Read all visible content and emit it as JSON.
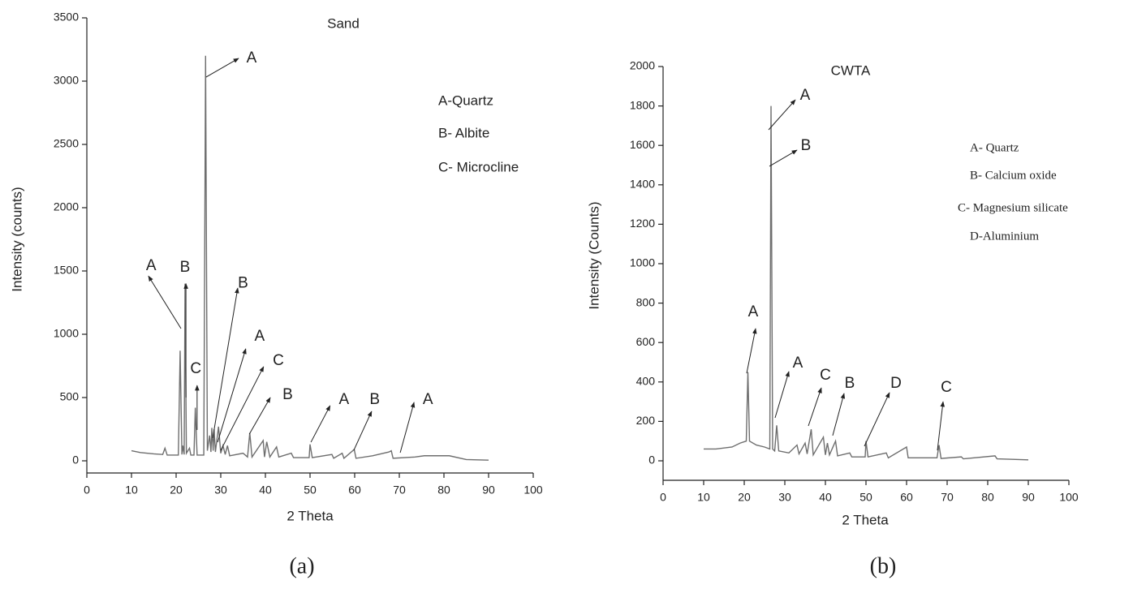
{
  "chart_data": [
    {
      "type": "line",
      "title": "Sand",
      "x_label": "2 Theta",
      "y_label": "Intensity (counts)",
      "caption": "(a)",
      "legend_notes": [
        "A-Quartz",
        "B- Albite",
        "C- Microcline"
      ],
      "xlim": [
        0,
        100
      ],
      "xticks": [
        0,
        10,
        20,
        30,
        40,
        50,
        60,
        70,
        80,
        90,
        100
      ],
      "ylim": [
        -100,
        3500
      ],
      "yticks": [
        0,
        500,
        1000,
        1500,
        2000,
        2500,
        3000,
        3500
      ],
      "x": [
        10,
        12,
        15,
        17,
        17.5,
        18,
        20.5,
        20.9,
        21.3,
        21.5,
        21.8,
        22,
        22.3,
        23,
        23.3,
        24,
        24.3,
        24.7,
        26.2,
        26.6,
        27,
        27.5,
        27.8,
        28,
        28.3,
        28.5,
        28.8,
        29.5,
        30,
        30.5,
        31,
        31.5,
        32,
        35,
        36,
        36.5,
        37,
        39.5,
        39.8,
        40.3,
        41,
        42.5,
        43,
        45.8,
        46.3,
        49.8,
        50,
        50.5,
        54.9,
        55.3,
        57.2,
        57.6,
        59.9,
        60.3,
        64,
        67.7,
        68.2,
        68.6,
        73.5,
        75.6,
        79.9,
        81.2,
        85,
        90
      ],
      "series": [
        {
          "color": "#6e6e6e",
          "values": [
            80,
            65,
            55,
            50,
            100,
            45,
            45,
            870,
            50,
            120,
            50,
            1400,
            60,
            100,
            45,
            45,
            420,
            45,
            45,
            3200,
            80,
            200,
            70,
            260,
            80,
            250,
            70,
            270,
            60,
            120,
            50,
            120,
            40,
            60,
            30,
            220,
            30,
            160,
            30,
            150,
            30,
            110,
            30,
            60,
            25,
            25,
            130,
            25,
            50,
            20,
            60,
            20,
            90,
            20,
            40,
            70,
            80,
            20,
            30,
            40,
            40,
            40,
            10,
            5
          ]
        }
      ],
      "annotations": [
        {
          "text": "A",
          "x": 14.4,
          "y": 1538,
          "arrow": [
            21.1,
            1045,
            13.8,
            1460
          ]
        },
        {
          "text": "B",
          "x": 22.0,
          "y": 1525,
          "arrow": [
            22.2,
            500,
            22.2,
            1400
          ]
        },
        {
          "text": "C",
          "x": 24.4,
          "y": 725,
          "arrow": [
            24.7,
            244,
            24.7,
            596
          ]
        },
        {
          "text": "A",
          "x": 36.9,
          "y": 3180,
          "arrow": [
            26.7,
            3032,
            34,
            3180
          ]
        },
        {
          "text": "B",
          "x": 35,
          "y": 1400,
          "arrow": [
            28.2,
            180,
            33.8,
            1365
          ]
        },
        {
          "text": "A",
          "x": 38.7,
          "y": 980,
          "arrow": [
            29.3,
            147,
            35.6,
            885
          ]
        },
        {
          "text": "C",
          "x": 42.9,
          "y": 790,
          "arrow": [
            30,
            83,
            39.6,
            744
          ]
        },
        {
          "text": "B",
          "x": 45,
          "y": 520,
          "arrow": [
            36.4,
            211,
            41.1,
            500
          ]
        },
        {
          "text": "A",
          "x": 57.6,
          "y": 480,
          "arrow": [
            50.2,
            147,
            54.5,
            436
          ]
        },
        {
          "text": "B",
          "x": 64.5,
          "y": 480,
          "arrow": [
            59.8,
            83,
            63.8,
            391
          ]
        },
        {
          "text": "A",
          "x": 76.4,
          "y": 480,
          "arrow": [
            70.2,
            64,
            73.3,
            462
          ]
        }
      ]
    },
    {
      "type": "line",
      "title": "CWTA",
      "x_label": "2 Theta",
      "y_label": "Intensity (Counts)",
      "caption": "(b)",
      "legend_notes": [
        "A- Quartz",
        "B- Calcium oxide",
        "C- Magnesium silicate",
        "D-Aluminium"
      ],
      "xlim": [
        0,
        100
      ],
      "xticks": [
        0,
        10,
        20,
        30,
        40,
        50,
        60,
        70,
        80,
        90,
        100
      ],
      "ylim": [
        -100,
        2000
      ],
      "yticks": [
        0,
        200,
        400,
        600,
        800,
        1000,
        1200,
        1400,
        1600,
        1800,
        2000
      ],
      "x": [
        10,
        13,
        17,
        19,
        20.5,
        20.9,
        21.3,
        23,
        25,
        26.3,
        26.6,
        27,
        27.5,
        28,
        28.5,
        31,
        33,
        33.5,
        35,
        35.5,
        36.5,
        37,
        39.5,
        40,
        40.5,
        41,
        42.5,
        43,
        46,
        46.5,
        49.8,
        50,
        50.5,
        55,
        55.5,
        60,
        60.4,
        67.5,
        68,
        68.5,
        73.5,
        74,
        81.8,
        82.3,
        90
      ],
      "series": [
        {
          "color": "#6e6e6e",
          "values": [
            60,
            60,
            70,
            90,
            100,
            450,
            100,
            80,
            70,
            60,
            1800,
            60,
            50,
            180,
            50,
            40,
            80,
            35,
            90,
            35,
            160,
            30,
            120,
            30,
            90,
            30,
            100,
            25,
            40,
            20,
            20,
            100,
            20,
            40,
            15,
            70,
            15,
            15,
            80,
            12,
            20,
            10,
            25,
            10,
            5
          ]
        }
      ],
      "annotations": [
        {
          "text": "A",
          "x": 35,
          "y": 1852,
          "arrow": [
            26,
            1679,
            32.6,
            1831
          ]
        },
        {
          "text": "B",
          "x": 35.2,
          "y": 1597,
          "arrow": [
            26.2,
            1494,
            33,
            1576
          ]
        },
        {
          "text": "A",
          "x": 22.2,
          "y": 753,
          "arrow": [
            20.6,
            444,
            22.8,
            671
          ]
        },
        {
          "text": "A",
          "x": 33.2,
          "y": 494,
          "arrow": [
            27.6,
            218,
            31,
            453
          ]
        },
        {
          "text": "C",
          "x": 40,
          "y": 432,
          "arrow": [
            35.8,
            177,
            39,
            370
          ]
        },
        {
          "text": "B",
          "x": 46,
          "y": 391,
          "arrow": [
            41.8,
            128,
            44.6,
            342
          ]
        },
        {
          "text": "D",
          "x": 57.4,
          "y": 391,
          "arrow": [
            49.6,
            74,
            55.8,
            346
          ]
        },
        {
          "text": "C",
          "x": 69.8,
          "y": 370,
          "arrow": [
            67.6,
            53,
            69,
            300
          ]
        }
      ]
    }
  ]
}
